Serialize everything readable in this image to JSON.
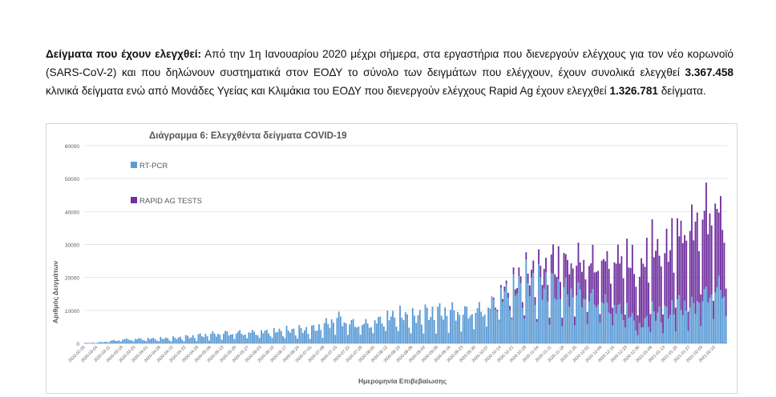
{
  "paragraph": {
    "lead": "Δείγματα που έχουν ελεγχθεί:",
    "text1": " Από την 1η Ιανουαρίου 2020 μέχρι σήμερα, στα εργαστήρια που διενεργούν ελέγχους για τον νέο κορωνοϊό (SARS-CoV-2) και που δηλώνουν συστηματικά στον ΕΟΔΥ το σύνολο των δειγμάτων που ελέγχουν, έχουν συνολικά ελεγχθεί ",
    "pcr_total": "3.367.458",
    "text2": " κλινικά δείγματα ενώ από Μονάδες Υγείας και Κλιμάκια του ΕΟΔΥ που διενεργούν ελέγχους Rapid Ag έχουν ελεγχθεί ",
    "rapid_total": "1.326.781",
    "text3": " δείγματα."
  },
  "colors": {
    "pcr": "#5b9bd5",
    "rapid": "#7030a0",
    "grid": "#e4e4e4",
    "axis_text": "#595959"
  },
  "chart_data": {
    "type": "bar",
    "stacked": true,
    "title": "Διάγραμμα 6: Ελεγχθέντα δείγματα COVID-19",
    "xlabel": "Ημερομηνία Επιβεβαίωσης",
    "ylabel": "Αριθμός Δειγμάτων",
    "ylim": [
      0,
      60000
    ],
    "yticks": [
      "0",
      "10000",
      "20000",
      "30000",
      "40000",
      "50000",
      "60000"
    ],
    "legend": [
      "RT-PCR",
      "RAPID AG TESTS"
    ],
    "xtick_labels": [
      "2020-02-26",
      "2020-03-04",
      "2020-03-11",
      "2020-03-18",
      "2020-03-25",
      "2020-04-01",
      "2020-04-08",
      "2020-04-15",
      "2020-04-22",
      "2020-04-29",
      "2020-05-06",
      "2020-05-13",
      "2020-05-20",
      "2020-05-27",
      "2020-06-03",
      "2020-06-10",
      "2020-06-17",
      "2020-06-24",
      "2020-07-01",
      "2020-07-08",
      "2020-07-15",
      "2020-07-22",
      "2020-07-29",
      "2020-08-05",
      "2020-08-12",
      "2020-08-19",
      "2020-08-26",
      "2020-09-02",
      "2020-09-09",
      "2020-09-16",
      "2020-09-23",
      "2020-09-30",
      "2020-10-07",
      "2020-10-14",
      "2020-10-21",
      "2020-10-28",
      "2020-11-04",
      "2020-11-11",
      "2020-11-18",
      "2020-11-25",
      "2020-12-02",
      "2020-12-09",
      "2020-12-16",
      "2020-12-23",
      "2020-12-30",
      "2021-01-06",
      "2021-01-13",
      "2021-01-20",
      "2021-01-27",
      "2021-02-03",
      "2021-02-10"
    ],
    "weekly_pcr": [
      150,
      300,
      900,
      1500,
      1700,
      1800,
      1900,
      2000,
      2400,
      2900,
      3500,
      3900,
      4100,
      4300,
      4500,
      4700,
      5000,
      5200,
      5400,
      7000,
      10000,
      8000,
      7500,
      8500,
      10500,
      11000,
      10000,
      11500,
      12000,
      12500,
      12000,
      13000,
      14000,
      19000,
      21000,
      24000,
      23000,
      22000,
      20000,
      19500,
      18000,
      17000,
      14000,
      13000,
      6000,
      12000,
      11500,
      15000,
      14000,
      18000,
      22000
    ],
    "weekly_rapid": [
      0,
      0,
      0,
      0,
      0,
      0,
      0,
      0,
      0,
      0,
      0,
      0,
      0,
      0,
      0,
      0,
      0,
      0,
      0,
      0,
      0,
      0,
      0,
      0,
      0,
      0,
      0,
      0,
      0,
      0,
      0,
      0,
      0,
      1000,
      2000,
      3000,
      4000,
      8000,
      10000,
      11000,
      12000,
      13000,
      17000,
      18000,
      20000,
      23000,
      21000,
      25000,
      26000,
      30000,
      26000
    ]
  }
}
